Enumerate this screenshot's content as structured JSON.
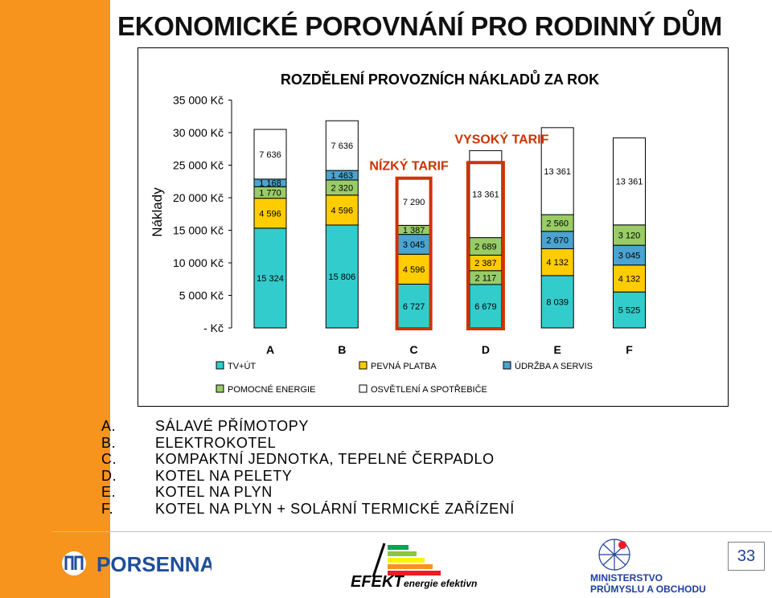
{
  "slide": {
    "title": "EKONOMICKÉ POROVNÁNÍ PRO RODINNÝ DŮM",
    "page_number": "33",
    "accent_color": "#f7941d"
  },
  "chart_data": {
    "type": "bar",
    "stacked": true,
    "title": "ROZDĚLENÍ PROVOZNÍCH NÁKLADŮ ZA ROK",
    "ylabel": "Náklady",
    "ylim": [
      0,
      35000
    ],
    "yticks": [
      {
        "value": 0,
        "label": "- Kč"
      },
      {
        "value": 5000,
        "label": "5 000 Kč"
      },
      {
        "value": 10000,
        "label": "10 000 Kč"
      },
      {
        "value": 15000,
        "label": "15 000 Kč"
      },
      {
        "value": 20000,
        "label": "20 000 Kč"
      },
      {
        "value": 25000,
        "label": "25 000 Kč"
      },
      {
        "value": 30000,
        "label": "30 000 Kč"
      },
      {
        "value": 35000,
        "label": "35 000 Kč"
      }
    ],
    "categories": [
      "A",
      "B",
      "C",
      "D",
      "E",
      "F"
    ],
    "series": [
      {
        "name": "TV+ÚT",
        "color": "#33cccc",
        "values": [
          15324,
          15806,
          6727,
          6679,
          8039,
          5525
        ],
        "labels": [
          "15 324",
          "15 806",
          "6 727",
          "6 679",
          "8 039",
          "5 525"
        ]
      },
      {
        "name": "POMOCNÉ ENERGIE",
        "color": "#99cc66",
        "values": [
          null,
          null,
          null,
          2117,
          null,
          null
        ],
        "labels": [
          "",
          "",
          "",
          "2 117",
          "",
          ""
        ]
      },
      {
        "name": "PEVNÁ PLATBA",
        "color": "#ffcc00",
        "values": [
          4596,
          4596,
          4596,
          2387,
          4132,
          4132
        ],
        "labels": [
          "4 596",
          "4 596",
          "4 596",
          "2 387",
          "4 132",
          "4 132"
        ]
      },
      {
        "name": "ÚDRŽBA A SERVIS",
        "color": "#4ba3cf",
        "values": [
          null,
          null,
          3045,
          null,
          2670,
          3045
        ],
        "labels": [
          "",
          "",
          "3 045",
          "",
          "2 670",
          "3 045"
        ]
      },
      {
        "name": "POMOCNÉ ENERGIE",
        "color": "#99cc66",
        "values": [
          1770,
          2320,
          1387,
          2689,
          2560,
          3120
        ],
        "labels": [
          "1 770",
          "2 320",
          "1 387",
          "2 689",
          "2 560",
          "3 120"
        ]
      },
      {
        "name": "ÚDRŽBA A SERVIS",
        "color": "#4ba3cf",
        "values": [
          1168,
          1463,
          null,
          null,
          null,
          null
        ],
        "labels": [
          "1 168",
          "1 463",
          "",
          "",
          "",
          ""
        ]
      },
      {
        "name": "OSVĚTLENÍ A SPOTŘEBIČE",
        "color": "#ffffff",
        "values": [
          7636,
          7636,
          7290,
          13361,
          13361,
          13361
        ],
        "labels": [
          "7 636",
          "7 636",
          "7 290",
          "13 361",
          "13 361",
          "13 361"
        ]
      }
    ],
    "legend": [
      {
        "name": "TV+ÚT",
        "color": "#33cccc"
      },
      {
        "name": "PEVNÁ PLATBA",
        "color": "#ffcc00"
      },
      {
        "name": "ÚDRŽBA A SERVIS",
        "color": "#4ba3cf"
      },
      {
        "name": "POMOCNÉ ENERGIE",
        "color": "#99cc66"
      },
      {
        "name": "OSVĚTLENÍ A SPOTŘEBIČE",
        "color": "#ffffff"
      }
    ],
    "legend_position": "bottom",
    "annotations": [
      {
        "text": "NÍZKÝ TARIF",
        "category": "C",
        "color": "#cc3300"
      },
      {
        "text": "VYSOKÝ TARIF",
        "category": "D",
        "color": "#cc3300"
      }
    ],
    "highlight_color": "#cc3300"
  },
  "key": [
    {
      "letter": "A.",
      "text": "SÁLAVÉ PŘÍMOTOPY"
    },
    {
      "letter": "B.",
      "text": "ELEKTROKOTEL"
    },
    {
      "letter": "C.",
      "text": "KOMPAKTNÍ JEDNOTKA, TEPELNÉ ČERPADLO"
    },
    {
      "letter": "D.",
      "text": "KOTEL NA PELETY"
    },
    {
      "letter": "E.",
      "text": "KOTEL NA PLYN"
    },
    {
      "letter": "F.",
      "text": "KOTEL NA PLYN + SOLÁRNÍ TERMICKÉ ZAŘÍZENÍ"
    }
  ],
  "logos": {
    "porsenna": "PORSENNA",
    "efekt": "EFEKT",
    "efekt_sub": "energie efektivně",
    "mpo_lines": [
      "MINISTERSTVO",
      "PRŮMYSLU A OBCHODU"
    ],
    "porsenna_color": "#1f4e9a",
    "mpo_color": "#1f3f9f"
  }
}
